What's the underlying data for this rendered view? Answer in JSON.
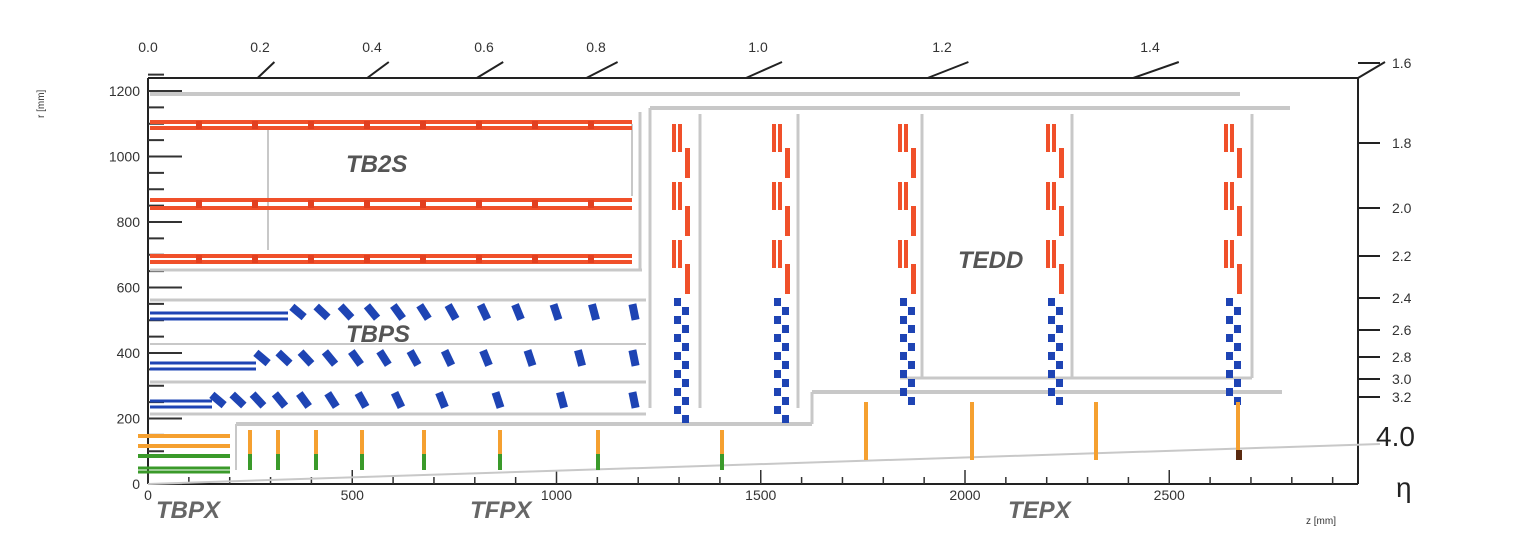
{
  "axes": {
    "r_axis_title": "r [mm]",
    "z_axis_title": "z [mm]",
    "eta_symbol": "η",
    "eta_max_label": "4.0",
    "r_ticks": [
      "0",
      "200",
      "400",
      "600",
      "800",
      "1000",
      "1200"
    ],
    "z_ticks": [
      "0",
      "500",
      "1000",
      "1500",
      "2000",
      "2500"
    ],
    "eta_top": [
      "0.0",
      "0.2",
      "0.4",
      "0.6",
      "0.8",
      "1.0",
      "1.2",
      "1.4"
    ],
    "eta_right": [
      "1.6",
      "1.8",
      "2.0",
      "2.2",
      "2.4",
      "2.6",
      "2.8",
      "3.0",
      "3.2"
    ]
  },
  "subsystems": {
    "tb2s": "TB2S",
    "tbps": "TBPS",
    "tedd": "TEDD",
    "tbpx": "TBPX",
    "tfpx": "TFPX",
    "tepx": "TEPX"
  },
  "colors": {
    "strip_2s": "#f0502a",
    "ps_module": "#1e44b4",
    "pixel_barrel": "#f5a030",
    "pixel_inner": "#3a9a2a",
    "support": "#c8c8c8",
    "frame": "#222222"
  }
}
